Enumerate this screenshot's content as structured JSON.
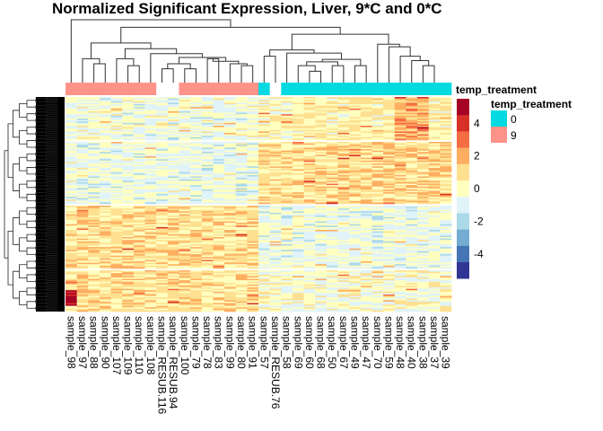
{
  "chart_data": {
    "type": "heatmap",
    "title": "Normalized Significant Expression, Liver, 9*C and 0*C",
    "xlabel": "",
    "ylabel": "",
    "columns": [
      "sample_98",
      "sample_97",
      "sample_88",
      "sample_90",
      "sample_107",
      "sample_109",
      "sample_110",
      "sample_108",
      "sample_RESUB.116",
      "sample_RESUB.94",
      "sample_100",
      "sample_79",
      "sample_78",
      "sample_83",
      "sample_99",
      "sample_80",
      "sample_91",
      "sample_57",
      "sample_RESUB.76",
      "sample_58",
      "sample_69",
      "sample_60",
      "sample_68",
      "sample_50",
      "sample_67",
      "sample_49",
      "sample_47",
      "sample_70",
      "sample_59",
      "sample_48",
      "sample_40",
      "sample_38",
      "sample_37",
      "sample_39"
    ],
    "column_annotation": {
      "name": "temp_treatment",
      "values": [
        "9",
        "9",
        "9",
        "9",
        "9",
        "9",
        "9",
        "9",
        null,
        null,
        "9",
        "9",
        "9",
        "9",
        "9",
        "9",
        "9",
        "0",
        null,
        "0",
        "0",
        "0",
        "0",
        "0",
        "0",
        "0",
        "0",
        "0",
        "0",
        "0",
        "0",
        "0",
        "0",
        "0"
      ]
    },
    "row_splits": 4,
    "row_labels_shown": false,
    "row_dendrogram": true,
    "column_dendrogram": {
      "merges": [
        {
          "a": 2,
          "b": 3,
          "height": 0.3
        },
        {
          "a": 1,
          "b": "n0",
          "height": 0.38
        },
        {
          "a": 5,
          "b": 6,
          "height": 0.27
        },
        {
          "a": 4,
          "b": "n2",
          "height": 0.38
        },
        {
          "a": 8,
          "b": 9,
          "height": 0.22
        },
        {
          "a": 10,
          "b": 11,
          "height": 0.22
        },
        {
          "a": "n4",
          "b": "n5",
          "height": 0.3
        },
        {
          "a": 12,
          "b": 13,
          "height": 0.38
        },
        {
          "a": 15,
          "b": 16,
          "height": 0.27
        },
        {
          "a": 14,
          "b": "n8",
          "height": 0.3
        },
        {
          "a": "n7",
          "b": "n9",
          "height": 0.34
        },
        {
          "a": "n6",
          "b": "n10",
          "height": 0.4
        },
        {
          "a": 7,
          "b": "n11",
          "height": 0.46
        },
        {
          "a": "n3",
          "b": "n12",
          "height": 0.54
        },
        {
          "a": "n1",
          "b": "n13",
          "height": 0.63
        },
        {
          "a": 17,
          "b": 18,
          "height": 0.42
        },
        {
          "a": 21,
          "b": 22,
          "height": 0.18
        },
        {
          "a": 20,
          "b": "n16",
          "height": 0.27
        },
        {
          "a": 23,
          "b": 24,
          "height": 0.27
        },
        {
          "a": "n17",
          "b": "n18",
          "height": 0.33
        },
        {
          "a": 25,
          "b": 26,
          "height": 0.27
        },
        {
          "a": "n19",
          "b": "n20",
          "height": 0.37
        },
        {
          "a": 19,
          "b": "n21",
          "height": 0.47
        },
        {
          "a": "n15",
          "b": "n22",
          "height": 0.52
        },
        {
          "a": 31,
          "b": 32,
          "height": 0.27
        },
        {
          "a": 30,
          "b": "n24",
          "height": 0.35
        },
        {
          "a": 29,
          "b": "n25",
          "height": 0.42
        },
        {
          "a": 28,
          "b": "n26",
          "height": 0.57
        },
        {
          "a": 27,
          "b": "n27",
          "height": 0.61
        },
        {
          "a": "n23",
          "b": "n28",
          "height": 0.77
        },
        {
          "a": "n14",
          "b": "n29",
          "height": 0.88
        },
        {
          "a": 0,
          "b": "n30",
          "height": 1.0
        }
      ]
    },
    "color_scale": {
      "breaks": [
        5,
        4,
        3,
        2,
        1,
        0,
        -1,
        -2,
        -3,
        -4,
        -5
      ],
      "colors": [
        "#A50026",
        "#D73027",
        "#F46D43",
        "#FDAE61",
        "#FEE090",
        "#FFFFBF",
        "#E0F3F8",
        "#ABD9E9",
        "#74ADD1",
        "#4575B4",
        "#313695"
      ],
      "tick_labels": [
        "4",
        "2",
        "0",
        "-2",
        "-4"
      ],
      "range": [
        -5,
        5
      ]
    },
    "legend": {
      "annotation_title_top": "temp_treatment",
      "annotation_title": "temp_treatment",
      "entries": [
        {
          "label": "0",
          "color": "#00DAE0"
        },
        {
          "label": "9",
          "color": "#FF9289"
        }
      ],
      "placement": "right"
    },
    "row_block_pattern": {
      "block_1": "mostly near 0 / slight negative for 9*C, slight positive for 0*C (0-3 higher for samples_48,40,38)",
      "block_2": "negative (-1) for 9*C, positive (1-2) for 0*C",
      "block_3": "positive (1-2) for 9*C, negative (-1) for 0*C",
      "block_4": "positive for 9*C (sample_98 up to 5), near 0 for 0*C"
    }
  }
}
